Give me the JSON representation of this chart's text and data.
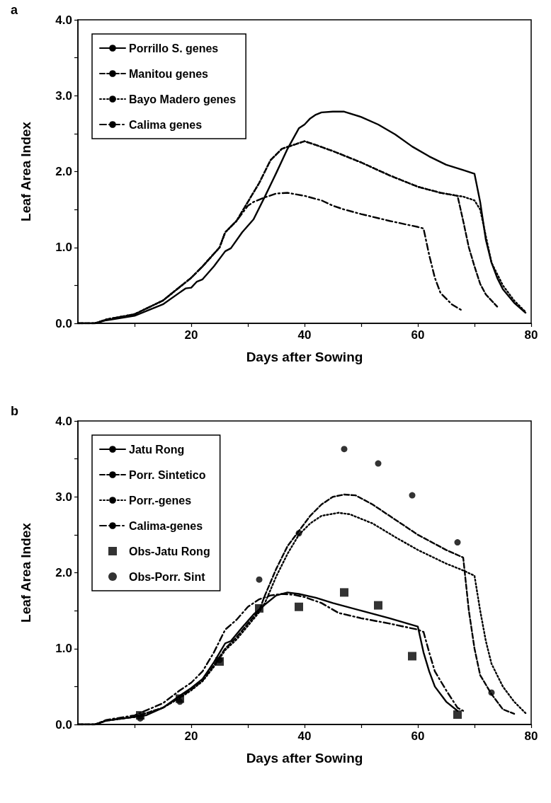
{
  "chart_data": [
    {
      "type": "line",
      "title": "a",
      "xlabel": "Days after Sowing",
      "ylabel": "Leaf Area Index",
      "xlim": [
        0,
        80
      ],
      "ylim": [
        0,
        4
      ],
      "xticks": [
        {
          "value": 10,
          "label": null
        },
        20,
        {
          "value": 30,
          "label": null
        },
        40,
        {
          "value": 50,
          "label": null
        },
        60,
        {
          "value": 70,
          "label": null
        },
        80
      ],
      "yticks": [
        {
          "value": 0,
          "label": "0.0"
        },
        {
          "value": 0.5,
          "label": null
        },
        {
          "value": 1,
          "label": "1.0"
        },
        {
          "value": 1.5,
          "label": null
        },
        {
          "value": 2,
          "label": "2.0"
        },
        {
          "value": 2.5,
          "label": null
        },
        {
          "value": 3,
          "label": "3.0"
        },
        {
          "value": 3.5,
          "label": null
        },
        {
          "value": 4,
          "label": "4.0"
        }
      ],
      "grid": false,
      "legend": "top left",
      "marker": "none",
      "series": [
        {
          "name": "Porrillo S. genes",
          "color": "#000000",
          "line_style": "solid",
          "x": [
            0,
            3,
            5,
            10,
            15,
            19,
            20,
            21,
            22,
            24,
            26,
            27,
            29,
            31,
            33,
            35,
            37,
            39,
            40,
            41,
            42,
            43,
            45,
            47,
            50,
            53,
            56,
            59,
            62,
            65,
            68,
            70,
            71,
            72,
            73,
            74,
            75,
            77,
            79
          ],
          "values": [
            0,
            0,
            0.04,
            0.1,
            0.25,
            0.46,
            0.47,
            0.55,
            0.58,
            0.75,
            0.95,
            0.99,
            1.2,
            1.37,
            1.67,
            1.98,
            2.3,
            2.57,
            2.62,
            2.7,
            2.75,
            2.78,
            2.79,
            2.79,
            2.72,
            2.62,
            2.49,
            2.33,
            2.2,
            2.09,
            2.02,
            1.97,
            1.6,
            1.1,
            0.8,
            0.6,
            0.45,
            0.27,
            0.14
          ]
        },
        {
          "name": "Manitou genes",
          "color": "#000000",
          "line_style": "dashed",
          "x": [
            0,
            3,
            5,
            10,
            15,
            20,
            22,
            25,
            26,
            28,
            30,
            32,
            34,
            36,
            38,
            40,
            42,
            45,
            50,
            55,
            60,
            64,
            67,
            68,
            69,
            70,
            71,
            72,
            74
          ],
          "values": [
            0,
            0,
            0.05,
            0.12,
            0.3,
            0.6,
            0.75,
            1.0,
            1.2,
            1.35,
            1.6,
            1.85,
            2.15,
            2.3,
            2.35,
            2.4,
            2.35,
            2.27,
            2.12,
            1.95,
            1.8,
            1.72,
            1.68,
            1.35,
            1.0,
            0.75,
            0.52,
            0.38,
            0.22
          ]
        },
        {
          "name": "Bayo Madero genes",
          "color": "#000000",
          "line_style": "dotted",
          "x": [
            0,
            3,
            5,
            10,
            15,
            20,
            22,
            25,
            26,
            28,
            30,
            32,
            34,
            36,
            38,
            40,
            42,
            45,
            50,
            55,
            60,
            64,
            67,
            68,
            70,
            71,
            72,
            73,
            75,
            77,
            79
          ],
          "values": [
            0,
            0,
            0.05,
            0.12,
            0.3,
            0.6,
            0.75,
            1.0,
            1.2,
            1.35,
            1.6,
            1.85,
            2.15,
            2.3,
            2.35,
            2.4,
            2.35,
            2.27,
            2.12,
            1.95,
            1.8,
            1.72,
            1.68,
            1.67,
            1.62,
            1.5,
            1.15,
            0.8,
            0.5,
            0.3,
            0.15
          ]
        },
        {
          "name": "Calima genes",
          "color": "#000000",
          "line_style": "dashdot",
          "x": [
            0,
            3,
            5,
            10,
            15,
            20,
            22,
            25,
            26,
            28,
            30,
            31,
            33,
            35,
            37,
            40,
            43,
            45,
            47,
            50,
            55,
            60,
            61,
            62,
            63,
            64,
            66,
            68
          ],
          "values": [
            0,
            0,
            0.05,
            0.12,
            0.3,
            0.6,
            0.75,
            1.0,
            1.2,
            1.35,
            1.55,
            1.6,
            1.66,
            1.71,
            1.72,
            1.68,
            1.62,
            1.55,
            1.5,
            1.44,
            1.35,
            1.27,
            1.25,
            0.9,
            0.6,
            0.4,
            0.25,
            0.16
          ]
        }
      ]
    },
    {
      "type": "line",
      "title": "b",
      "xlabel": "Days after Sowing",
      "ylabel": "Leaf Area Index",
      "xlim": [
        0,
        80
      ],
      "ylim": [
        0,
        4
      ],
      "xticks": [
        {
          "value": 10,
          "label": null
        },
        20,
        {
          "value": 30,
          "label": null
        },
        40,
        {
          "value": 50,
          "label": null
        },
        60,
        {
          "value": 70,
          "label": null
        },
        80
      ],
      "yticks": [
        {
          "value": 0,
          "label": "0.0"
        },
        {
          "value": 0.5,
          "label": null
        },
        {
          "value": 1,
          "label": "1.0"
        },
        {
          "value": 1.5,
          "label": null
        },
        {
          "value": 2,
          "label": "2.0"
        },
        {
          "value": 2.5,
          "label": null
        },
        {
          "value": 3,
          "label": "3.0"
        },
        {
          "value": 3.5,
          "label": null
        },
        {
          "value": 4,
          "label": "4.0"
        }
      ],
      "grid": false,
      "legend": "top left",
      "marker": "none",
      "series": [
        {
          "name": "Jatu Rong",
          "color": "#000000",
          "line_style": "solid",
          "x": [
            0,
            3,
            5,
            10,
            12,
            15,
            18,
            20,
            22,
            24,
            26,
            27,
            29,
            31,
            33,
            35,
            37,
            39,
            42,
            45,
            50,
            55,
            60,
            61,
            62,
            63,
            65,
            67
          ],
          "values": [
            0,
            0,
            0.05,
            0.1,
            0.12,
            0.22,
            0.38,
            0.48,
            0.6,
            0.82,
            1.07,
            1.1,
            1.28,
            1.45,
            1.58,
            1.7,
            1.74,
            1.72,
            1.67,
            1.6,
            1.5,
            1.4,
            1.29,
            0.95,
            0.7,
            0.5,
            0.3,
            0.18
          ]
        },
        {
          "name": "Porr. Sintetico",
          "color": "#000000",
          "line_style": "dashed",
          "x": [
            0,
            3,
            5,
            10,
            15,
            18,
            20,
            22,
            24,
            26,
            28,
            30,
            32,
            33,
            35,
            37,
            39,
            41,
            43,
            45,
            47,
            49,
            52,
            55,
            60,
            65,
            68,
            69,
            70,
            71,
            73,
            75,
            77
          ],
          "values": [
            0,
            0,
            0.05,
            0.1,
            0.22,
            0.36,
            0.46,
            0.58,
            0.78,
            1.0,
            1.15,
            1.33,
            1.5,
            1.7,
            2.05,
            2.35,
            2.55,
            2.75,
            2.9,
            3.0,
            3.03,
            3.02,
            2.9,
            2.75,
            2.5,
            2.3,
            2.2,
            1.5,
            1.0,
            0.65,
            0.4,
            0.2,
            0.14
          ]
        },
        {
          "name": "Porr.-genes",
          "color": "#000000",
          "line_style": "dotted",
          "x": [
            0,
            3,
            5,
            10,
            15,
            18,
            20,
            22,
            24,
            26,
            28,
            30,
            32,
            33,
            35,
            37,
            39,
            41,
            43,
            46,
            48,
            52,
            56,
            60,
            65,
            68,
            70,
            71,
            72,
            73,
            75,
            77,
            79
          ],
          "values": [
            0,
            0,
            0.05,
            0.1,
            0.22,
            0.35,
            0.45,
            0.57,
            0.76,
            0.98,
            1.12,
            1.3,
            1.48,
            1.6,
            1.95,
            2.25,
            2.5,
            2.65,
            2.75,
            2.79,
            2.77,
            2.65,
            2.47,
            2.3,
            2.12,
            2.03,
            1.96,
            1.5,
            1.1,
            0.8,
            0.5,
            0.3,
            0.15
          ]
        },
        {
          "name": "Calima-genes",
          "color": "#000000",
          "line_style": "dashdot",
          "x": [
            0,
            3,
            5,
            10,
            15,
            18,
            20,
            22,
            24,
            26,
            28,
            30,
            32,
            34,
            36,
            38,
            40,
            43,
            46,
            50,
            55,
            60,
            61,
            62,
            63,
            65,
            67,
            68
          ],
          "values": [
            0,
            0,
            0.06,
            0.12,
            0.28,
            0.45,
            0.55,
            0.7,
            0.95,
            1.25,
            1.38,
            1.55,
            1.65,
            1.7,
            1.72,
            1.71,
            1.68,
            1.6,
            1.47,
            1.4,
            1.33,
            1.25,
            1.22,
            0.95,
            0.7,
            0.45,
            0.22,
            0.18
          ]
        },
        {
          "name": "Obs-Jatu Rong",
          "type": "scatter",
          "marker": "square",
          "color": "#000000",
          "x": [
            11,
            18,
            25,
            32,
            39,
            47,
            53,
            59,
            67
          ],
          "values": [
            0.12,
            0.34,
            0.83,
            1.53,
            1.55,
            1.74,
            1.57,
            0.9,
            0.13
          ]
        },
        {
          "name": "Obs-Porr. Sint",
          "type": "scatter",
          "marker": "circle",
          "color": "#000000",
          "x": [
            11,
            18,
            25,
            32,
            39,
            47,
            53,
            59,
            67,
            73
          ],
          "values": [
            0.08,
            0.3,
            0.85,
            1.91,
            2.52,
            3.63,
            3.44,
            3.02,
            2.4,
            0.42
          ]
        }
      ]
    }
  ]
}
